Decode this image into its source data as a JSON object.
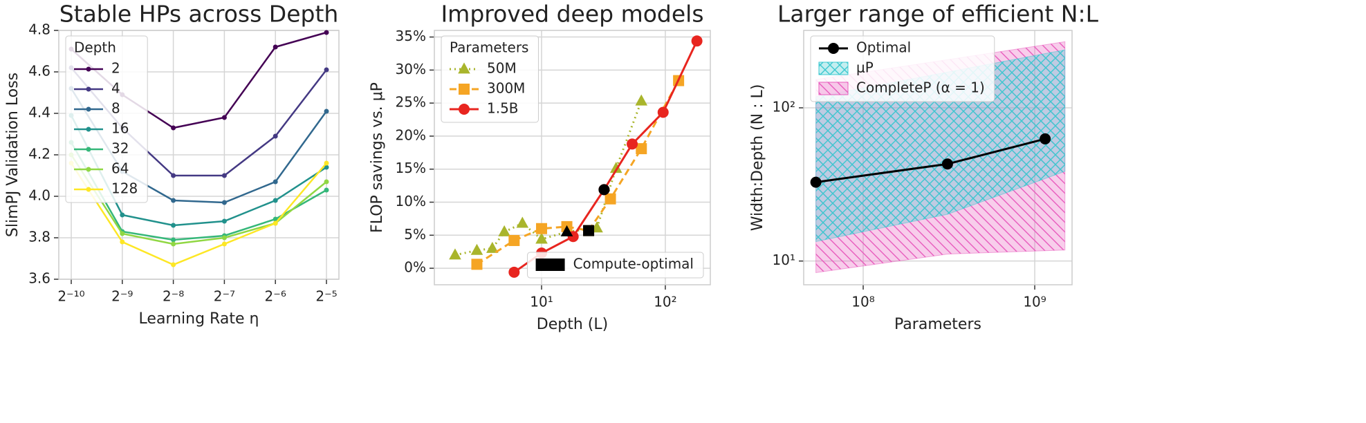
{
  "chart_data": [
    {
      "type": "line",
      "title": "Stable HPs across Depth",
      "xlabel": "Learning Rate η",
      "ylabel": "SlimPJ Validation Loss",
      "categories": [
        "2⁻¹⁰",
        "2⁻⁹",
        "2⁻⁸",
        "2⁻⁷",
        "2⁻⁶",
        "2⁻⁵"
      ],
      "ylim": [
        3.6,
        4.8
      ],
      "yticks": [
        3.6,
        3.8,
        {
          "value": 4,
          "label": "4.0"
        },
        4.2,
        4.4,
        4.6,
        4.8
      ],
      "grid": true,
      "legend": "upper left",
      "legend_title": "Depth",
      "series": [
        {
          "name": "2",
          "color": "#440154",
          "marker": "circle",
          "values": [
            4.71,
            4.49,
            4.33,
            4.38,
            4.72,
            4.79
          ]
        },
        {
          "name": "4",
          "color": "#443983",
          "marker": "circle",
          "values": [
            4.62,
            4.33,
            4.1,
            4.1,
            4.29,
            4.61
          ]
        },
        {
          "name": "8",
          "color": "#31688e",
          "marker": "circle",
          "values": [
            4.52,
            4.12,
            3.98,
            3.97,
            4.07,
            4.41
          ]
        },
        {
          "name": "16",
          "color": "#21918c",
          "marker": "circle",
          "values": [
            4.39,
            3.91,
            3.86,
            3.88,
            3.98,
            4.14
          ]
        },
        {
          "name": "32",
          "color": "#35b779",
          "marker": "circle",
          "values": [
            4.26,
            3.83,
            3.79,
            3.81,
            3.89,
            4.03
          ]
        },
        {
          "name": "64",
          "color": "#90d743",
          "marker": "circle",
          "values": [
            4.2,
            3.82,
            3.77,
            3.8,
            3.87,
            4.07
          ]
        },
        {
          "name": "128",
          "color": "#fde725",
          "marker": "circle",
          "values": [
            4.16,
            3.78,
            3.67,
            3.77,
            3.87,
            4.16
          ]
        }
      ]
    },
    {
      "type": "line",
      "title": "Improved deep models",
      "xlabel": "Depth (L)",
      "ylabel": "FLOP savings vs. μP",
      "xscale": "log",
      "xlim": [
        1.36,
        231
      ],
      "xticks": [
        {
          "value": 10,
          "label": "10¹"
        },
        {
          "value": 100,
          "label": "10²"
        }
      ],
      "ylim": [
        -2.5,
        36
      ],
      "yticks": [
        {
          "value": 0,
          "label": "0%"
        },
        {
          "value": 5,
          "label": "5%"
        },
        {
          "value": 10,
          "label": "10%"
        },
        {
          "value": 15,
          "label": "15%"
        },
        {
          "value": 20,
          "label": "20%"
        },
        {
          "value": 25,
          "label": "25%"
        },
        {
          "value": 30,
          "label": "30%"
        },
        {
          "value": 35,
          "label": "35%"
        }
      ],
      "grid": true,
      "legend": "upper left",
      "legend_title": "Parameters",
      "series": [
        {
          "name": "50M",
          "color": "#a9b52c",
          "marker": "triangle",
          "linestyle": "dotted",
          "x": [
            2,
            3,
            4,
            5,
            7,
            10,
            16,
            28,
            40,
            64
          ],
          "values": [
            2.0,
            2.7,
            3.0,
            5.5,
            6.8,
            4.4,
            5.5,
            6.1,
            15.1,
            25.3
          ]
        },
        {
          "name": "300M",
          "color": "#f5a524",
          "marker": "square",
          "linestyle": "dashed",
          "x": [
            3,
            6,
            10,
            16,
            24,
            36,
            64,
            128
          ],
          "values": [
            0.6,
            4.2,
            6.0,
            6.3,
            5.7,
            10.5,
            18.1,
            28.4
          ]
        },
        {
          "name": "1.5B",
          "color": "#e8251f",
          "marker": "circle",
          "linestyle": "solid",
          "x": [
            6,
            10,
            18,
            32,
            54,
            96,
            180
          ],
          "values": [
            -0.6,
            2.3,
            4.8,
            11.9,
            18.8,
            23.6,
            34.4
          ]
        }
      ],
      "highlight": {
        "name": "Compute-optimal",
        "color": "#000000",
        "legend": "lower right",
        "markers": [
          "triangle",
          "square",
          "circle"
        ],
        "x": [
          16,
          24,
          32
        ],
        "values": [
          5.5,
          5.7,
          11.9
        ]
      }
    },
    {
      "type": "line",
      "title": "Larger range of efficient N:L",
      "xlabel": "Parameters",
      "ylabel": "Width:Depth (N : L)",
      "xscale": "log",
      "yscale": "log",
      "xlim": [
        45000000,
        1650000000
      ],
      "xticks": [
        {
          "value": 100000000,
          "label": "10⁸"
        },
        {
          "value": 1000000000,
          "label": "10⁹"
        }
      ],
      "ylim": [
        7,
        320
      ],
      "yticks": [
        {
          "value": 10,
          "label": "10¹"
        },
        {
          "value": 100,
          "label": "10²"
        }
      ],
      "grid": true,
      "legend": "upper left",
      "series": [
        {
          "name": "Optimal",
          "color": "#000000",
          "marker": "circle",
          "linestyle": "solid",
          "x": [
            53000000,
            310000000,
            1150000000
          ],
          "values": [
            32.7,
            43,
            62.7
          ]
        }
      ],
      "bands": [
        {
          "name": "μP",
          "color": "#3cc8d0",
          "hatch": "x",
          "x": [
            53000000,
            310000000,
            1500000000
          ],
          "lower": [
            13.4,
            20.2,
            38.5
          ],
          "upper": [
            118,
            171,
            239
          ]
        },
        {
          "name": "CompleteP (α = 1)",
          "color": "#e85bbd",
          "hatch": "\\",
          "x": [
            53000000,
            310000000,
            1500000000
          ],
          "lower": [
            8.4,
            11.1,
            11.8
          ],
          "upper": [
            153,
            206,
            270
          ]
        }
      ]
    }
  ]
}
